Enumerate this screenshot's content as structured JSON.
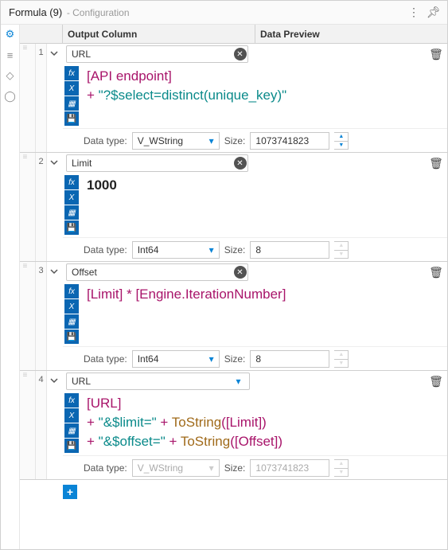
{
  "header": {
    "title": "Formula (9)",
    "subtitle": "- Configuration"
  },
  "columns": {
    "output": "Output Column",
    "preview": "Data Preview"
  },
  "labels": {
    "data_type": "Data type:",
    "size": "Size:"
  },
  "rails": {
    "fx": "fx",
    "x": "X",
    "folder": "▦",
    "save": "💾"
  },
  "rows": [
    {
      "num": "1",
      "field": "URL",
      "field_mode": "clear",
      "code": [
        {
          "cls": "plum",
          "t": "[API endpoint]"
        },
        {
          "cls": "",
          "t": "\n"
        },
        {
          "cls": "plum",
          "t": "+"
        },
        {
          "cls": "",
          "t": " "
        },
        {
          "cls": "teal",
          "t": "\"?$select=distinct(unique_key)\""
        }
      ],
      "dtype": "V_WString",
      "dtype_disabled": false,
      "size": "1073741823",
      "spinner_disabled": false
    },
    {
      "num": "2",
      "field": "Limit",
      "field_mode": "clear",
      "bold": true,
      "code": [
        {
          "cls": "",
          "t": "1000"
        }
      ],
      "dtype": "Int64",
      "dtype_disabled": false,
      "size": "8",
      "spinner_disabled": true
    },
    {
      "num": "3",
      "field": "Offset",
      "field_mode": "clear",
      "code": [
        {
          "cls": "plum",
          "t": "[Limit]"
        },
        {
          "cls": "",
          "t": " "
        },
        {
          "cls": "plum",
          "t": "*"
        },
        {
          "cls": "",
          "t": " "
        },
        {
          "cls": "plum",
          "t": "[Engine.IterationNumber]"
        }
      ],
      "dtype": "Int64",
      "dtype_disabled": false,
      "size": "8",
      "spinner_disabled": true
    },
    {
      "num": "4",
      "field": "URL",
      "field_mode": "dropdown",
      "code": [
        {
          "cls": "plum",
          "t": "[URL]"
        },
        {
          "cls": "",
          "t": "\n"
        },
        {
          "cls": "plum",
          "t": "+"
        },
        {
          "cls": "",
          "t": " "
        },
        {
          "cls": "teal",
          "t": "\"&$limit=\""
        },
        {
          "cls": "",
          "t": " "
        },
        {
          "cls": "plum",
          "t": "+"
        },
        {
          "cls": "",
          "t": " "
        },
        {
          "cls": "brown",
          "t": "ToString"
        },
        {
          "cls": "plum",
          "t": "("
        },
        {
          "cls": "plum",
          "t": "[Limit]"
        },
        {
          "cls": "plum",
          "t": ")"
        },
        {
          "cls": "",
          "t": "\n"
        },
        {
          "cls": "plum",
          "t": "+"
        },
        {
          "cls": "",
          "t": " "
        },
        {
          "cls": "teal",
          "t": "\"&$offset=\""
        },
        {
          "cls": "",
          "t": " "
        },
        {
          "cls": "plum",
          "t": "+"
        },
        {
          "cls": "",
          "t": " "
        },
        {
          "cls": "brown",
          "t": "ToString"
        },
        {
          "cls": "plum",
          "t": "("
        },
        {
          "cls": "plum",
          "t": "[Offset]"
        },
        {
          "cls": "plum",
          "t": ")"
        }
      ],
      "dtype": "V_WString",
      "dtype_disabled": true,
      "size": "1073741823",
      "spinner_disabled": true
    }
  ],
  "colors": {
    "teal": "#0a8a8a",
    "plum": "#a8146a",
    "brown": "#a06a1a",
    "rail": "#0a66b2",
    "accent": "#0a84d6"
  }
}
